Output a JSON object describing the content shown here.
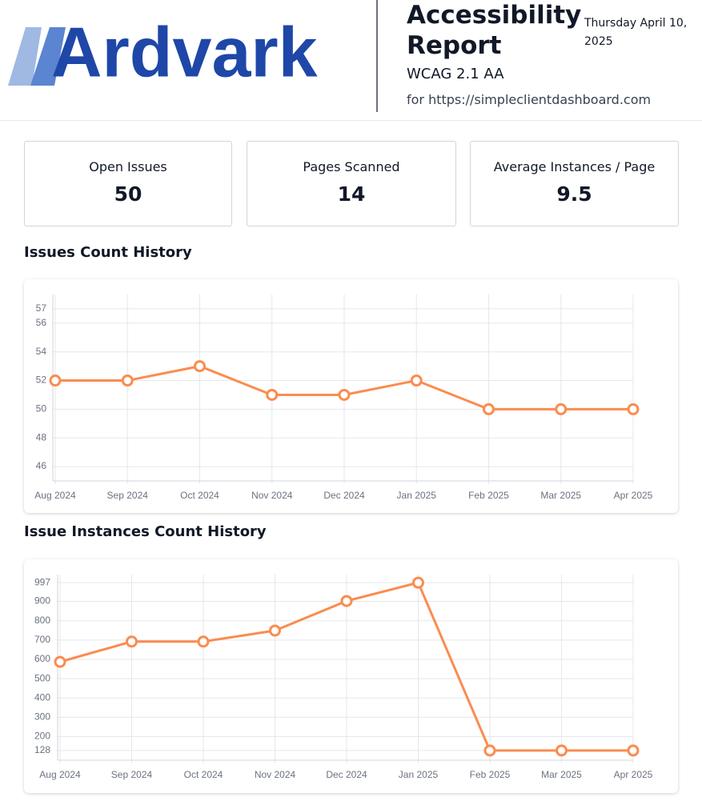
{
  "header": {
    "logo": "Ardvark",
    "title": "Accessibility Report",
    "subtitle": "WCAG 2.1 AA",
    "url": "for https://simpleclientdashboard.com",
    "date": "Thursday April 10, 2025"
  },
  "stats": [
    {
      "label": "Open Issues",
      "value": 50
    },
    {
      "label": "Pages Scanned",
      "value": 14
    },
    {
      "label": "Average Instances / Page",
      "value": 9.5
    }
  ],
  "chart_data": [
    {
      "type": "line",
      "title": "Issues Count History",
      "categories": [
        "Aug 2024",
        "Sep 2024",
        "Oct 2024",
        "Nov 2024",
        "Dec 2024",
        "Jan 2025",
        "Feb 2025",
        "Mar 2025",
        "Apr 2025"
      ],
      "values": [
        52,
        52,
        53,
        51,
        51,
        52,
        50,
        50,
        50
      ],
      "color": "#fa8c4f",
      "ylim": [
        45,
        58
      ],
      "yticks": [
        46,
        48,
        50,
        52,
        54,
        56,
        57
      ],
      "grid": true
    },
    {
      "type": "line",
      "title": "Issue Instances Count History",
      "categories": [
        "Aug 2024",
        "Sep 2024",
        "Oct 2024",
        "Nov 2024",
        "Dec 2024",
        "Jan 2025",
        "Feb 2025",
        "Mar 2025",
        "Apr 2025"
      ],
      "values": [
        587,
        692,
        692,
        749,
        902,
        997,
        128,
        128,
        128
      ],
      "color": "#fa8c4f",
      "ylim": [
        78,
        1039
      ],
      "yticks": [
        128,
        200,
        300,
        400,
        500,
        600,
        700,
        800,
        900,
        997
      ],
      "grid": true
    }
  ]
}
